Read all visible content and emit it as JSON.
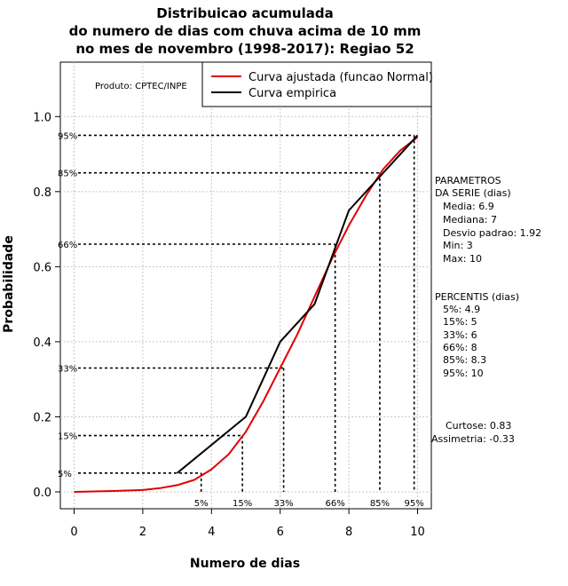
{
  "chart_data": {
    "type": "line",
    "title": [
      "Distribuicao acumulada",
      "do numero de dias com chuva acima de 10 mm",
      "no mes de novembro (1998-2017): Regiao 52"
    ],
    "xlabel": "Numero de dias",
    "ylabel": "Probabilidade",
    "xlim": [
      -0.4,
      10.4
    ],
    "ylim": [
      -0.045,
      1.145
    ],
    "xticks": [
      0,
      2,
      4,
      6,
      8,
      10
    ],
    "yticks": [
      0.0,
      0.2,
      0.4,
      0.6,
      0.8,
      1.0
    ],
    "xtick_labels": [
      "0",
      "2",
      "4",
      "6",
      "8",
      "10"
    ],
    "ytick_labels": [
      "0.0",
      "0.2",
      "0.4",
      "0.6",
      "0.8",
      "1.0"
    ],
    "grid": true,
    "legend_position": "top-right",
    "series": [
      {
        "name": "Curva ajustada (funcao Normal)",
        "color": "#e00000",
        "x": [
          0,
          1,
          2,
          2.5,
          3,
          3.5,
          4,
          4.5,
          5,
          5.5,
          6,
          6.5,
          7,
          7.5,
          8,
          8.5,
          9,
          9.5,
          10
        ],
        "y": [
          0.0,
          0.002,
          0.005,
          0.01,
          0.018,
          0.032,
          0.06,
          0.1,
          0.16,
          0.24,
          0.33,
          0.42,
          0.52,
          0.62,
          0.71,
          0.79,
          0.86,
          0.91,
          0.945
        ]
      },
      {
        "name": "Curva empirica",
        "color": "#000000",
        "x": [
          3,
          5,
          6,
          7,
          8,
          10
        ],
        "y": [
          0.05,
          0.2,
          0.4,
          0.5,
          0.75,
          0.95
        ]
      }
    ],
    "percentiles": [
      {
        "label": "5%",
        "x": 3.7,
        "y": 0.05
      },
      {
        "label": "15%",
        "x": 4.9,
        "y": 0.15
      },
      {
        "label": "33%",
        "x": 6.1,
        "y": 0.33
      },
      {
        "label": "66%",
        "x": 7.6,
        "y": 0.66
      },
      {
        "label": "85%",
        "x": 8.9,
        "y": 0.85
      },
      {
        "label": "95%",
        "x": 9.9,
        "y": 0.95
      }
    ],
    "annotations": {
      "product": "Produto: CPTEC/INPE",
      "params_title": [
        "PARAMETROS",
        "DA SERIE (dias)"
      ],
      "params": [
        "Media: 6.9",
        "Mediana: 7",
        "Desvio padrao: 1.92",
        "Min: 3",
        "Max: 10"
      ],
      "percentis_title": "PERCENTIS (dias)",
      "percentis": [
        "5%: 4.9",
        "15%: 5",
        "33%: 6",
        "66%: 8",
        "85%: 8.3",
        "95%: 10"
      ],
      "curtose": "Curtose: 0.83",
      "assimetria": "Assimetria: -0.33"
    }
  }
}
